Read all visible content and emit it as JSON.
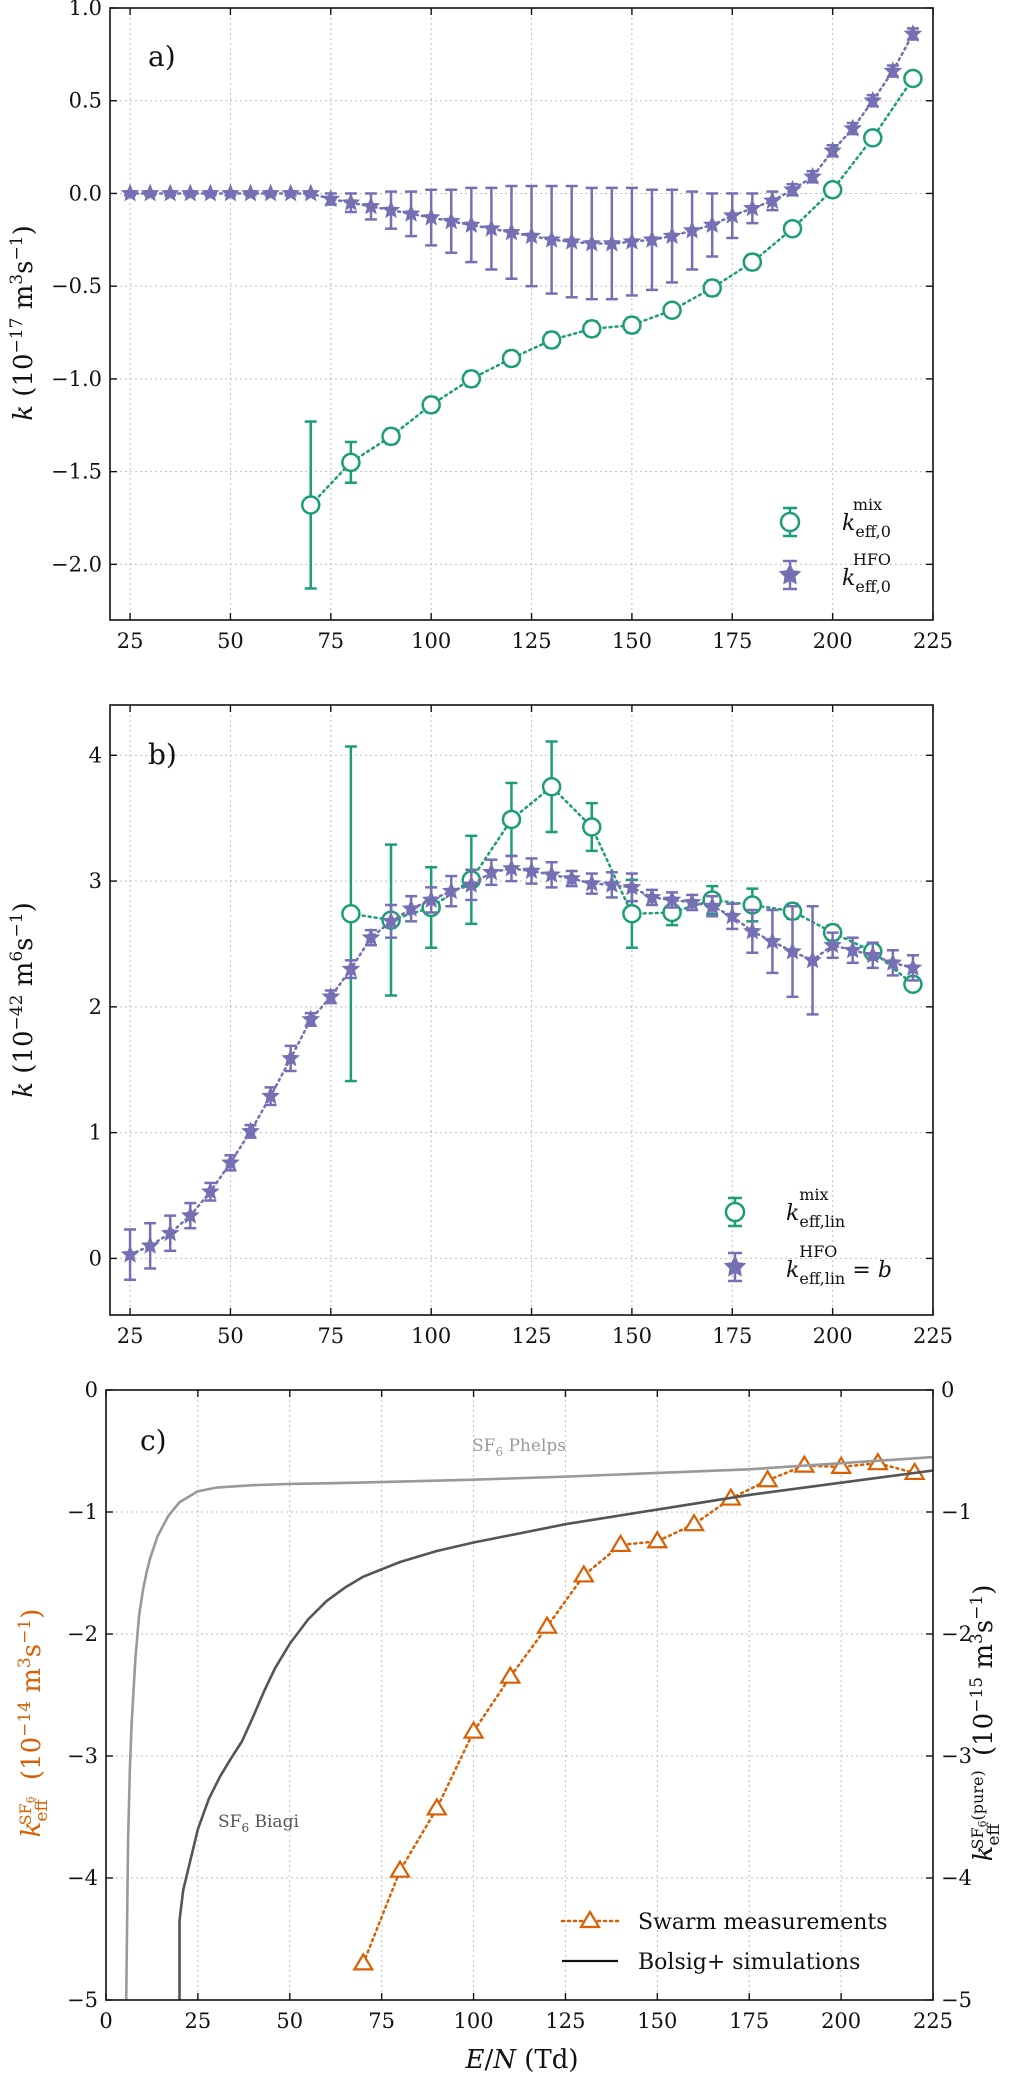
{
  "colors": {
    "mix": "#1b9e77",
    "hfo": "#7570b3",
    "sf6": "#d95f02",
    "phelps": "#999999",
    "biagi": "#555555",
    "axis": "#111111"
  },
  "chart_data": [
    {
      "panel": "a)",
      "type": "scatter",
      "ylabel": "k (10⁻¹⁷ m³s⁻¹)",
      "xlim": [
        20,
        225
      ],
      "ylim": [
        -2.3,
        1.0
      ],
      "xticks": [
        25,
        50,
        75,
        100,
        125,
        150,
        175,
        200,
        225
      ],
      "yticks": [
        -2.0,
        -1.5,
        -1.0,
        -0.5,
        0.0,
        0.5,
        1.0
      ],
      "ytick_labels": [
        "−2.0",
        "−1.5",
        "−1.0",
        "−0.5",
        "0.0",
        "0.5",
        "1.0"
      ],
      "grid": true,
      "legend_position": "bottom-right",
      "series": [
        {
          "name": "k eff,0 mix",
          "marker": "circle",
          "color_key": "mix",
          "x": [
            70,
            80,
            90,
            100,
            110,
            120,
            130,
            140,
            150,
            160,
            170,
            180,
            190,
            200,
            210,
            220
          ],
          "y": [
            -1.68,
            -1.45,
            -1.31,
            -1.14,
            -1.0,
            -0.89,
            -0.79,
            -0.73,
            -0.71,
            -0.63,
            -0.51,
            -0.37,
            -0.19,
            0.02,
            0.3,
            0.62
          ],
          "err": [
            0.45,
            0.11,
            0.04,
            0.04,
            0.04,
            0.04,
            0.04,
            0.04,
            0.04,
            0.03,
            0.04,
            0.04,
            0.03,
            0.03,
            0.03,
            0.03
          ]
        },
        {
          "name": "k eff,0 HFO",
          "marker": "star",
          "color_key": "hfo",
          "x": [
            25,
            30,
            35,
            40,
            45,
            50,
            55,
            60,
            65,
            70,
            75,
            80,
            85,
            90,
            95,
            100,
            105,
            110,
            115,
            120,
            125,
            130,
            135,
            140,
            145,
            150,
            155,
            160,
            165,
            170,
            175,
            180,
            185,
            190,
            195,
            200,
            205,
            210,
            215,
            220
          ],
          "y": [
            0,
            0,
            0,
            0,
            0,
            0,
            0,
            0,
            0,
            0,
            -0.03,
            -0.05,
            -0.07,
            -0.09,
            -0.11,
            -0.13,
            -0.15,
            -0.17,
            -0.19,
            -0.21,
            -0.23,
            -0.25,
            -0.26,
            -0.27,
            -0.27,
            -0.26,
            -0.25,
            -0.23,
            -0.2,
            -0.17,
            -0.12,
            -0.08,
            -0.04,
            0.02,
            0.09,
            0.23,
            0.35,
            0.5,
            0.66,
            0.86
          ],
          "err": [
            0.01,
            0.01,
            0.01,
            0.01,
            0.01,
            0.01,
            0.01,
            0.01,
            0.01,
            0.01,
            0.03,
            0.05,
            0.07,
            0.1,
            0.12,
            0.15,
            0.17,
            0.2,
            0.22,
            0.25,
            0.27,
            0.29,
            0.3,
            0.3,
            0.3,
            0.29,
            0.27,
            0.25,
            0.21,
            0.17,
            0.12,
            0.08,
            0.05,
            0.03,
            0.03,
            0.03,
            0.03,
            0.03,
            0.03,
            0.03
          ]
        }
      ]
    },
    {
      "panel": "b)",
      "type": "scatter",
      "ylabel": "k (10⁻⁴² m⁶s⁻¹)",
      "xlim": [
        20,
        225
      ],
      "ylim": [
        -0.45,
        4.4
      ],
      "xticks": [
        25,
        50,
        75,
        100,
        125,
        150,
        175,
        200,
        225
      ],
      "yticks": [
        0,
        1,
        2,
        3,
        4
      ],
      "ytick_labels": [
        "0",
        "1",
        "2",
        "3",
        "4"
      ],
      "grid": true,
      "legend_position": "bottom-right",
      "series": [
        {
          "name": "k eff,lin mix",
          "marker": "circle",
          "color_key": "mix",
          "x": [
            80,
            90,
            100,
            110,
            120,
            130,
            140,
            150,
            160,
            170,
            180,
            190,
            200,
            210,
            220
          ],
          "y": [
            2.74,
            2.69,
            2.79,
            3.01,
            3.49,
            3.75,
            3.43,
            2.74,
            2.75,
            2.85,
            2.81,
            2.76,
            2.59,
            2.44,
            2.18
          ],
          "err": [
            1.33,
            0.6,
            0.32,
            0.35,
            0.29,
            0.36,
            0.19,
            0.27,
            0.1,
            0.11,
            0.13,
            0.06,
            0.06,
            0.06,
            0.05
          ]
        },
        {
          "name": "k eff,lin HFO = b",
          "marker": "star",
          "color_key": "hfo",
          "x": [
            25,
            30,
            35,
            40,
            45,
            50,
            55,
            60,
            65,
            70,
            75,
            80,
            85,
            90,
            95,
            100,
            105,
            110,
            115,
            120,
            125,
            130,
            135,
            140,
            145,
            150,
            155,
            160,
            165,
            170,
            175,
            180,
            185,
            190,
            195,
            200,
            205,
            210,
            215,
            220
          ],
          "y": [
            0.03,
            0.1,
            0.2,
            0.34,
            0.53,
            0.76,
            1.01,
            1.29,
            1.59,
            1.9,
            2.08,
            2.3,
            2.55,
            2.68,
            2.78,
            2.85,
            2.92,
            2.97,
            3.07,
            3.1,
            3.08,
            3.05,
            3.02,
            2.98,
            2.97,
            2.95,
            2.87,
            2.85,
            2.83,
            2.8,
            2.72,
            2.6,
            2.52,
            2.44,
            2.37,
            2.49,
            2.45,
            2.41,
            2.35,
            2.31
          ],
          "err": [
            0.2,
            0.18,
            0.14,
            0.1,
            0.07,
            0.06,
            0.05,
            0.07,
            0.1,
            0.05,
            0.05,
            0.07,
            0.06,
            0.13,
            0.1,
            0.1,
            0.12,
            0.12,
            0.1,
            0.1,
            0.1,
            0.1,
            0.06,
            0.08,
            0.1,
            0.11,
            0.06,
            0.06,
            0.06,
            0.08,
            0.1,
            0.17,
            0.25,
            0.36,
            0.43,
            0.1,
            0.1,
            0.1,
            0.1,
            0.1
          ]
        }
      ]
    },
    {
      "panel": "c)",
      "type": "line",
      "xlabel": "E/N (Td)",
      "ylabel_left": "k eff SF6 (10⁻¹⁴ m³s⁻¹)",
      "ylabel_right": "k eff SF6(pure) (10⁻¹⁵ m³s⁻¹)",
      "xlim": [
        0,
        225
      ],
      "ylim": [
        -5,
        0
      ],
      "xticks": [
        0,
        25,
        50,
        75,
        100,
        125,
        150,
        175,
        200,
        225
      ],
      "yticks": [
        -5,
        -4,
        -3,
        -2,
        -1,
        0
      ],
      "ytick_labels": [
        "−5",
        "−4",
        "−3",
        "−2",
        "−1",
        "0"
      ],
      "grid": true,
      "legend_position": "bottom-right",
      "legend": [
        "Swarm measurements",
        "Bolsig+ simulations"
      ],
      "annotations": [
        "SF6 Phelps",
        "SF6 Biagi"
      ],
      "series": [
        {
          "name": "Swarm measurements",
          "marker": "triangle",
          "color_key": "sf6",
          "x": [
            70,
            80,
            90,
            100,
            110,
            120,
            130,
            140,
            150,
            160,
            170,
            180,
            190,
            200,
            210,
            220
          ],
          "y": [
            -4.7,
            -3.94,
            -3.43,
            -2.8,
            -2.35,
            -1.94,
            -1.52,
            -1.27,
            -1.24,
            -1.1,
            -0.89,
            -0.74,
            -0.62,
            -0.63,
            -0.6,
            -0.68
          ]
        },
        {
          "name": "SF6 Phelps",
          "color_key": "phelps",
          "x": [
            5.5,
            6,
            6.5,
            7,
            8,
            9,
            10,
            11,
            12,
            14,
            17,
            20,
            25,
            30,
            40,
            50,
            60,
            75,
            100,
            125,
            150,
            175,
            200,
            225
          ],
          "y": [
            -5,
            -3.7,
            -3.1,
            -2.72,
            -2.2,
            -1.85,
            -1.65,
            -1.5,
            -1.38,
            -1.2,
            -1.03,
            -0.92,
            -0.83,
            -0.8,
            -0.78,
            -0.77,
            -0.765,
            -0.755,
            -0.735,
            -0.71,
            -0.68,
            -0.65,
            -0.6,
            -0.55
          ]
        },
        {
          "name": "SF6 Biagi",
          "color_key": "biagi",
          "x": [
            20,
            20,
            21,
            23,
            25,
            28,
            31,
            34,
            37,
            40,
            43,
            46,
            50,
            55,
            60,
            65,
            70,
            80,
            90,
            100,
            125,
            150,
            175,
            200,
            225
          ],
          "y": [
            -5,
            -4.35,
            -4.1,
            -3.85,
            -3.6,
            -3.35,
            -3.17,
            -3.02,
            -2.88,
            -2.68,
            -2.47,
            -2.28,
            -2.08,
            -1.88,
            -1.73,
            -1.62,
            -1.53,
            -1.41,
            -1.32,
            -1.25,
            -1.1,
            -0.98,
            -0.86,
            -0.76,
            -0.66
          ]
        }
      ]
    }
  ]
}
